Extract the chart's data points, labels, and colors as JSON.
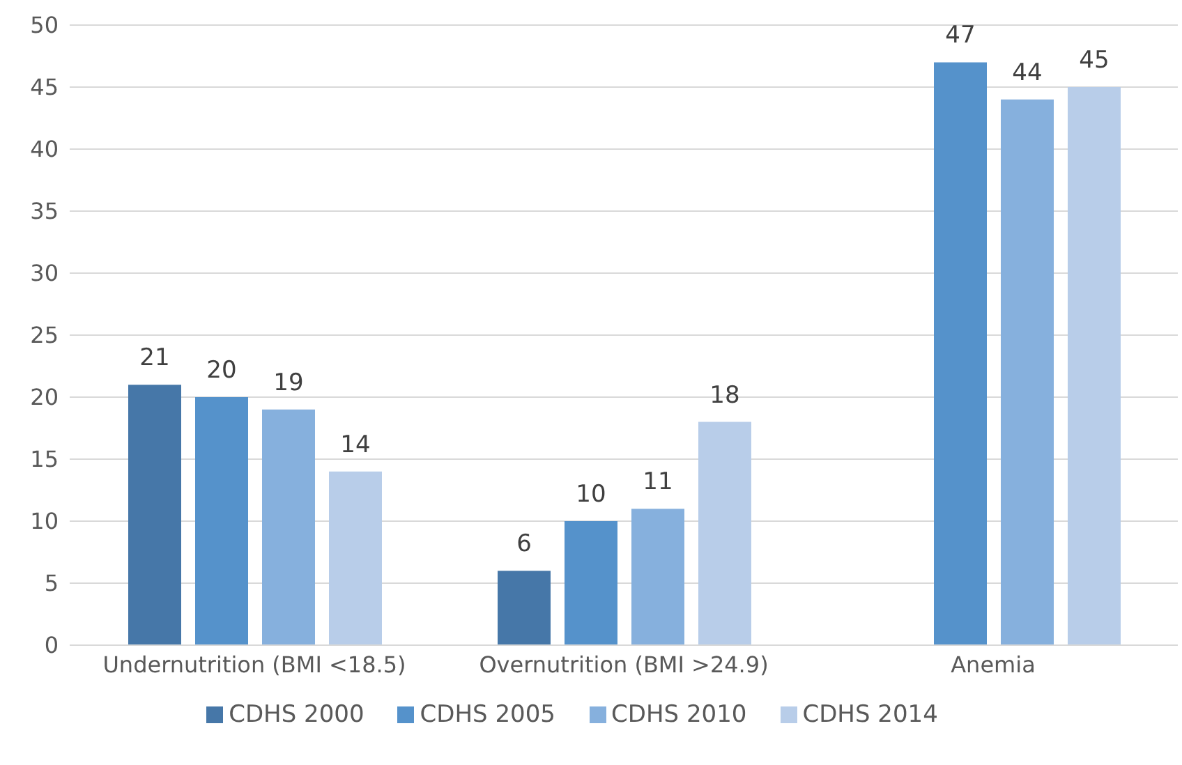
{
  "chart_data": {
    "type": "bar",
    "categories": [
      "Undernutrition (BMI <18.5)",
      "Overnutrition (BMI >24.9)",
      "Anemia"
    ],
    "series": [
      {
        "name": "CDHS 2000",
        "color": "#4677a8",
        "values": [
          21,
          6,
          null
        ]
      },
      {
        "name": "CDHS 2005",
        "color": "#5592cb",
        "values": [
          20,
          10,
          47
        ]
      },
      {
        "name": "CDHS 2010",
        "color": "#86b0dd",
        "values": [
          19,
          11,
          44
        ]
      },
      {
        "name": "CDHS 2014",
        "color": "#b8cde9",
        "values": [
          14,
          18,
          45
        ]
      }
    ],
    "ylim": [
      0,
      50
    ],
    "yticks": [
      0,
      5,
      10,
      15,
      20,
      25,
      30,
      35,
      40,
      45,
      50
    ],
    "grid": "y",
    "legend": "bottom",
    "data_labels": true
  }
}
